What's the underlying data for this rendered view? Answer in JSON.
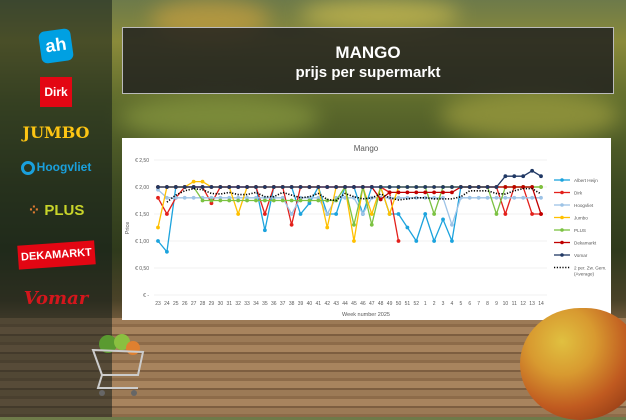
{
  "title": {
    "line1": "MANGO",
    "line2": "prijs per supermarkt"
  },
  "logos": [
    {
      "name": "Albert Heijn",
      "text": "ah",
      "color": "#00a0e2"
    },
    {
      "name": "Dirk",
      "text": "Dirk",
      "color": "#e30613"
    },
    {
      "name": "Jumbo",
      "text": "JUMBO",
      "color": "#fdc513"
    },
    {
      "name": "Hoogvliet",
      "text": "Hoogvliet",
      "color": "#1aa0dc"
    },
    {
      "name": "PLUS",
      "text": "PLUS",
      "color": "#c8d42a"
    },
    {
      "name": "Dekamarkt",
      "text": "DEKAMARKT",
      "color": "#e30613"
    },
    {
      "name": "Vomar",
      "text": "Vomar",
      "color": "#d4161c"
    }
  ],
  "chart_data": {
    "type": "line",
    "title": "Mango",
    "xlabel": "Week number 2025",
    "ylabel": "Price",
    "ylim": [
      0,
      2.5
    ],
    "yticks": [
      "€ -",
      "€ 0,50",
      "€ 1,00",
      "€ 1,50",
      "€ 2,00",
      "€ 2,50"
    ],
    "grid": true,
    "legend": "right",
    "categories": [
      "23",
      "24",
      "25",
      "26",
      "27",
      "28",
      "29",
      "30",
      "31",
      "32",
      "33",
      "34",
      "35",
      "36",
      "37",
      "38",
      "39",
      "40",
      "41",
      "42",
      "43",
      "44",
      "45",
      "46",
      "47",
      "48",
      "49",
      "50",
      "51",
      "52",
      "1",
      "2",
      "3",
      "4",
      "5",
      "6",
      "7",
      "8",
      "9",
      "10",
      "11",
      "12",
      "13",
      "14"
    ],
    "series": [
      {
        "name": "Albert Heijn",
        "color": "#1ca3dd",
        "values": [
          1.0,
          0.8,
          2.0,
          2.0,
          2.0,
          2.0,
          2.0,
          2.0,
          2.0,
          2.0,
          2.0,
          2.0,
          1.2,
          2.0,
          2.0,
          2.0,
          1.5,
          1.7,
          2.0,
          1.5,
          1.5,
          2.0,
          2.0,
          1.5,
          2.0,
          2.0,
          1.5,
          1.5,
          1.25,
          1.0,
          1.5,
          1.0,
          1.4,
          1.0,
          2.0,
          2.0,
          2.0,
          2.0,
          2.0,
          2.0,
          2.0,
          2.0,
          2.0,
          2.0
        ]
      },
      {
        "name": "Dirk",
        "color": "#e3201b",
        "values": [
          1.8,
          1.5,
          1.8,
          2.0,
          2.0,
          2.0,
          1.7,
          2.0,
          2.0,
          2.0,
          2.0,
          2.0,
          1.5,
          2.0,
          2.0,
          1.3,
          2.0,
          2.0,
          2.0,
          2.0,
          2.0,
          2.0,
          2.0,
          2.0,
          2.0,
          2.0,
          1.9,
          1.0,
          null,
          null,
          null,
          null,
          null,
          null,
          2.0,
          2.0,
          2.0,
          2.0,
          2.0,
          1.5,
          2.0,
          2.0,
          1.5,
          1.5
        ]
      },
      {
        "name": "Hoogvliet",
        "color": "#9dc3e6",
        "values": [
          1.95,
          1.8,
          1.8,
          1.8,
          1.8,
          1.8,
          1.8,
          1.8,
          1.8,
          1.8,
          1.8,
          1.8,
          1.8,
          1.8,
          1.8,
          1.5,
          1.8,
          1.8,
          1.8,
          1.5,
          1.8,
          1.8,
          1.8,
          1.5,
          1.8,
          1.8,
          1.8,
          1.8,
          1.8,
          1.8,
          1.8,
          1.8,
          1.8,
          1.3,
          1.8,
          1.8,
          1.8,
          1.8,
          1.8,
          1.8,
          1.8,
          1.8,
          1.8,
          1.8
        ]
      },
      {
        "name": "Jumbo",
        "color": "#ffc000",
        "values": [
          1.25,
          2.0,
          2.0,
          2.0,
          2.1,
          2.1,
          2.0,
          2.0,
          2.0,
          1.5,
          2.0,
          2.0,
          2.0,
          2.0,
          2.0,
          2.0,
          2.0,
          2.0,
          2.0,
          1.25,
          2.0,
          2.0,
          1.0,
          2.0,
          1.5,
          2.0,
          1.5,
          2.0,
          2.0,
          2.0,
          2.0,
          2.0,
          2.0,
          2.0,
          2.0,
          2.0,
          2.0,
          2.0,
          2.0,
          2.0,
          2.0,
          2.0,
          2.0,
          2.0
        ]
      },
      {
        "name": "PLUS",
        "color": "#7cc242",
        "values": [
          2.0,
          2.0,
          2.0,
          2.0,
          2.0,
          1.75,
          1.75,
          1.75,
          1.75,
          1.75,
          1.75,
          1.75,
          1.75,
          1.75,
          1.75,
          1.75,
          1.75,
          1.75,
          1.75,
          1.75,
          1.75,
          2.0,
          1.3,
          2.0,
          1.3,
          2.0,
          2.0,
          2.0,
          2.0,
          2.0,
          2.0,
          1.5,
          2.0,
          2.0,
          2.0,
          2.0,
          2.0,
          2.0,
          1.5,
          2.0,
          2.0,
          2.0,
          2.0,
          2.0
        ]
      },
      {
        "name": "Dekamarkt",
        "color": "#c00000",
        "values": [
          2.0,
          2.0,
          2.0,
          2.0,
          2.0,
          2.0,
          2.0,
          2.0,
          2.0,
          2.0,
          2.0,
          2.0,
          2.0,
          2.0,
          2.0,
          2.0,
          2.0,
          2.0,
          2.0,
          2.0,
          2.0,
          2.0,
          2.0,
          2.0,
          2.0,
          1.77,
          1.9,
          1.9,
          1.9,
          1.9,
          1.9,
          1.9,
          1.9,
          1.9,
          2.0,
          2.0,
          2.0,
          2.0,
          2.0,
          2.0,
          2.0,
          2.0,
          2.0,
          1.5
        ]
      },
      {
        "name": "Vomar",
        "color": "#203864",
        "values": [
          2.0,
          2.0,
          2.0,
          2.0,
          2.0,
          2.0,
          2.0,
          2.0,
          2.0,
          2.0,
          2.0,
          2.0,
          2.0,
          2.0,
          2.0,
          2.0,
          2.0,
          2.0,
          2.0,
          2.0,
          2.0,
          2.0,
          2.0,
          2.0,
          2.0,
          2.0,
          2.0,
          2.0,
          2.0,
          2.0,
          2.0,
          2.0,
          2.0,
          2.0,
          2.0,
          2.0,
          2.0,
          2.0,
          2.0,
          2.2,
          2.2,
          2.2,
          2.3,
          2.2
        ]
      },
      {
        "name": "2 per. Zw. Gem. (Average)",
        "color": "#000000",
        "dotted": true,
        "values": [
          null,
          1.72,
          1.85,
          1.93,
          1.97,
          1.95,
          1.88,
          1.87,
          1.9,
          1.86,
          1.86,
          1.9,
          1.82,
          1.82,
          1.9,
          1.85,
          1.8,
          1.82,
          1.88,
          1.77,
          1.75,
          1.88,
          1.82,
          1.78,
          1.8,
          1.87,
          1.8,
          1.76,
          1.78,
          1.8,
          1.8,
          1.78,
          1.78,
          1.78,
          1.82,
          1.93,
          1.93,
          1.93,
          1.88,
          1.87,
          1.93,
          1.97,
          1.97,
          1.87
        ]
      }
    ]
  }
}
